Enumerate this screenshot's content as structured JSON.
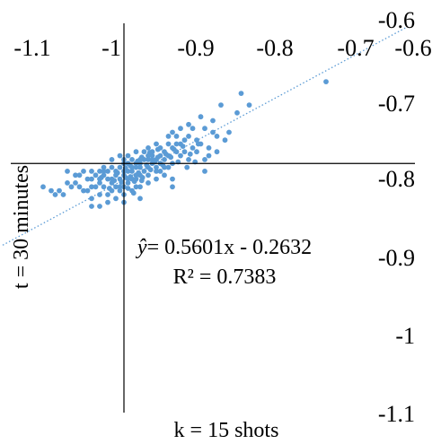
{
  "chart_data": {
    "type": "scatter",
    "title": "",
    "xlabel": "k = 15 shots",
    "ylabel": "t = 30 minutes",
    "xlim": [
      -1.1,
      -0.6
    ],
    "ylim": [
      -1.1,
      -0.6
    ],
    "x_ticks": [
      "-1.1",
      "-1",
      "-0.9",
      "-0.8",
      "-0.7",
      "-0.6"
    ],
    "y_ticks": [
      "-0.6",
      "-0.7",
      "-0.8",
      "-0.9",
      "-1",
      "-1.1"
    ],
    "axes_cross": {
      "x": -0.96,
      "y": -0.78
    },
    "grid": false,
    "point_color": "#5B9BD5",
    "trendline": {
      "type": "linear",
      "slope": 0.5601,
      "intercept": -0.2632,
      "style": "dotted",
      "color": "#5B9BD5",
      "equation_prefix": "ŷ",
      "equation_text": "= 0.5601x - 0.2632",
      "r2_text": "R² = 0.7383"
    },
    "series": [
      {
        "points": [
          [
            -0.71,
            -0.675
          ],
          [
            -0.815,
            -0.69
          ],
          [
            -0.805,
            -0.705
          ],
          [
            -0.84,
            -0.705
          ],
          [
            -0.82,
            -0.715
          ],
          [
            -0.85,
            -0.725
          ],
          [
            -0.875,
            -0.735
          ],
          [
            -0.86,
            -0.735
          ],
          [
            -0.88,
            -0.745
          ],
          [
            -0.845,
            -0.745
          ],
          [
            -0.865,
            -0.755
          ],
          [
            -0.89,
            -0.755
          ],
          [
            -0.855,
            -0.76
          ],
          [
            -0.83,
            -0.74
          ],
          [
            -0.9,
            -0.76
          ],
          [
            -0.91,
            -0.765
          ],
          [
            -0.895,
            -0.765
          ],
          [
            -0.905,
            -0.77
          ],
          [
            -0.915,
            -0.77
          ],
          [
            -0.925,
            -0.765
          ],
          [
            -0.935,
            -0.765
          ],
          [
            -0.92,
            -0.775
          ],
          [
            -0.93,
            -0.775
          ],
          [
            -0.94,
            -0.775
          ],
          [
            -0.945,
            -0.78
          ],
          [
            -0.95,
            -0.775
          ],
          [
            -0.955,
            -0.78
          ],
          [
            -0.96,
            -0.78
          ],
          [
            -0.965,
            -0.785
          ],
          [
            -0.97,
            -0.79
          ],
          [
            -0.975,
            -0.785
          ],
          [
            -0.98,
            -0.79
          ],
          [
            -0.985,
            -0.795
          ],
          [
            -0.99,
            -0.79
          ],
          [
            -0.995,
            -0.795
          ],
          [
            -1.0,
            -0.8
          ],
          [
            -1.005,
            -0.8
          ],
          [
            -1.01,
            -0.79
          ],
          [
            -1.015,
            -0.795
          ],
          [
            -1.02,
            -0.805
          ],
          [
            -1.025,
            -0.81
          ],
          [
            -1.03,
            -0.805
          ],
          [
            -1.04,
            -0.815
          ],
          [
            -1.05,
            -0.815
          ],
          [
            -1.035,
            -0.82
          ],
          [
            -1.045,
            -0.82
          ],
          [
            -1.06,
            -0.81
          ],
          [
            -0.99,
            -0.82
          ],
          [
            -1.0,
            -0.825
          ],
          [
            -1.01,
            -0.815
          ],
          [
            -0.97,
            -0.81
          ],
          [
            -0.975,
            -0.815
          ],
          [
            -0.98,
            -0.82
          ],
          [
            -0.965,
            -0.8
          ],
          [
            -0.955,
            -0.805
          ],
          [
            -0.945,
            -0.81
          ],
          [
            -0.96,
            -0.81
          ],
          [
            -0.95,
            -0.8
          ],
          [
            -0.94,
            -0.795
          ],
          [
            -0.935,
            -0.79
          ],
          [
            -0.93,
            -0.785
          ],
          [
            -0.925,
            -0.78
          ],
          [
            -0.92,
            -0.785
          ],
          [
            -0.915,
            -0.79
          ],
          [
            -0.91,
            -0.775
          ],
          [
            -0.9,
            -0.78
          ],
          [
            -0.89,
            -0.77
          ],
          [
            -0.88,
            -0.775
          ],
          [
            -0.87,
            -0.765
          ],
          [
            -0.86,
            -0.775
          ],
          [
            -0.875,
            -0.76
          ],
          [
            -0.885,
            -0.765
          ],
          [
            -0.895,
            -0.755
          ],
          [
            -0.87,
            -0.75
          ],
          [
            -0.855,
            -0.77
          ],
          [
            -0.845,
            -0.765
          ],
          [
            -0.91,
            -0.795
          ],
          [
            -0.9,
            -0.8
          ],
          [
            -0.905,
            -0.785
          ],
          [
            -0.92,
            -0.8
          ],
          [
            -0.93,
            -0.805
          ],
          [
            -0.94,
            -0.81
          ],
          [
            -0.95,
            -0.815
          ],
          [
            -0.96,
            -0.82
          ],
          [
            -0.97,
            -0.825
          ],
          [
            -0.98,
            -0.83
          ],
          [
            -0.99,
            -0.835
          ],
          [
            -1.0,
            -0.81
          ],
          [
            -0.955,
            -0.79
          ],
          [
            -0.945,
            -0.785
          ],
          [
            -0.935,
            -0.775
          ],
          [
            -0.925,
            -0.77
          ],
          [
            -0.915,
            -0.76
          ],
          [
            -0.905,
            -0.755
          ],
          [
            -0.895,
            -0.745
          ],
          [
            -0.885,
            -0.75
          ],
          [
            -0.99,
            -0.805
          ],
          [
            -0.98,
            -0.8
          ],
          [
            -0.97,
            -0.795
          ],
          [
            -0.96,
            -0.79
          ],
          [
            -0.95,
            -0.79
          ],
          [
            -0.94,
            -0.785
          ],
          [
            -0.93,
            -0.795
          ],
          [
            -0.92,
            -0.79
          ],
          [
            -1.02,
            -0.795
          ],
          [
            -1.03,
            -0.79
          ],
          [
            -1.0,
            -0.79
          ],
          [
            -0.985,
            -0.81
          ],
          [
            -0.975,
            -0.805
          ],
          [
            -0.965,
            -0.81
          ],
          [
            -0.952,
            -0.797
          ],
          [
            -0.947,
            -0.803
          ],
          [
            -0.958,
            -0.798
          ],
          [
            -0.963,
            -0.804
          ],
          [
            -0.942,
            -0.792
          ],
          [
            -0.937,
            -0.798
          ],
          [
            -0.932,
            -0.782
          ],
          [
            -0.927,
            -0.788
          ],
          [
            -0.922,
            -0.778
          ],
          [
            -0.918,
            -0.772
          ],
          [
            -0.912,
            -0.782
          ],
          [
            -0.908,
            -0.768
          ],
          [
            -0.902,
            -0.772
          ],
          [
            -0.898,
            -0.762
          ],
          [
            -0.893,
            -0.778
          ],
          [
            -0.887,
            -0.758
          ],
          [
            -0.882,
            -0.785
          ],
          [
            -0.878,
            -0.768
          ],
          [
            -0.872,
            -0.778
          ],
          [
            -0.868,
            -0.755
          ],
          [
            -0.985,
            -0.785
          ],
          [
            -0.995,
            -0.81
          ],
          [
            -1.005,
            -0.815
          ],
          [
            -1.015,
            -0.81
          ],
          [
            -0.975,
            -0.775
          ],
          [
            -0.965,
            -0.77
          ],
          [
            -0.955,
            -0.77
          ],
          [
            -0.945,
            -0.765
          ],
          [
            -0.93,
            -0.76
          ],
          [
            -0.92,
            -0.755
          ],
          [
            -0.905,
            -0.745
          ],
          [
            -0.9,
            -0.74
          ],
          [
            -0.89,
            -0.735
          ],
          [
            -0.88,
            -0.73
          ],
          [
            -0.865,
            -0.72
          ],
          [
            -0.85,
            -0.74
          ],
          [
            -0.835,
            -0.75
          ],
          [
            -0.86,
            -0.79
          ],
          [
            -0.9,
            -0.81
          ],
          [
            -0.94,
            -0.825
          ],
          [
            -0.96,
            -0.83
          ],
          [
            -1.0,
            -0.835
          ],
          [
            -0.955,
            -0.812
          ],
          [
            -0.948,
            -0.818
          ],
          [
            -0.938,
            -0.802
          ],
          [
            -0.968,
            -0.792
          ],
          [
            -0.972,
            -0.802
          ],
          [
            -0.978,
            -0.812
          ],
          [
            -0.988,
            -0.798
          ],
          [
            -0.958,
            -0.786
          ],
          [
            -0.952,
            -0.783
          ],
          [
            -0.943,
            -0.777
          ],
          [
            -0.938,
            -0.772
          ],
          [
            -0.928,
            -0.766
          ],
          [
            -0.918,
            -0.762
          ],
          [
            -0.945,
            -0.795
          ],
          [
            -0.955,
            -0.8
          ],
          [
            -0.96,
            -0.795
          ],
          [
            -0.95,
            -0.785
          ],
          [
            -0.94,
            -0.78
          ],
          [
            -0.93,
            -0.77
          ],
          [
            -0.925,
            -0.775
          ],
          [
            -0.915,
            -0.78
          ],
          [
            -0.91,
            -0.785
          ],
          [
            -0.96,
            -0.775
          ],
          [
            -0.985,
            -0.79
          ],
          [
            -0.99,
            -0.8
          ],
          [
            -0.975,
            -0.8
          ],
          [
            -0.965,
            -0.815
          ],
          [
            -0.945,
            -0.8
          ]
        ]
      }
    ]
  }
}
